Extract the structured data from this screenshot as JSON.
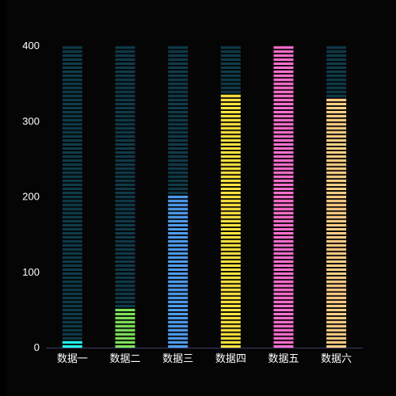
{
  "chart_data": {
    "type": "bar",
    "title": "",
    "xlabel": "",
    "ylabel": "",
    "ylim": [
      0,
      400
    ],
    "yticks": [
      0,
      100,
      200,
      300,
      400
    ],
    "categories": [
      "数据一",
      "数据二",
      "数据三",
      "数据四",
      "数据五",
      "数据六"
    ],
    "values": [
      10,
      55,
      205,
      337,
      400,
      330
    ],
    "max_value": 400,
    "grid": false,
    "legend": "none",
    "colors": {
      "background": "#050505",
      "track": "#0f3b4a",
      "axis": "#3a3f66",
      "bars": [
        "#22f5ee",
        "#7ee35a",
        "#4f9df0",
        "#ffe43f",
        "#ff6fd1",
        "#ffcf86"
      ]
    }
  }
}
